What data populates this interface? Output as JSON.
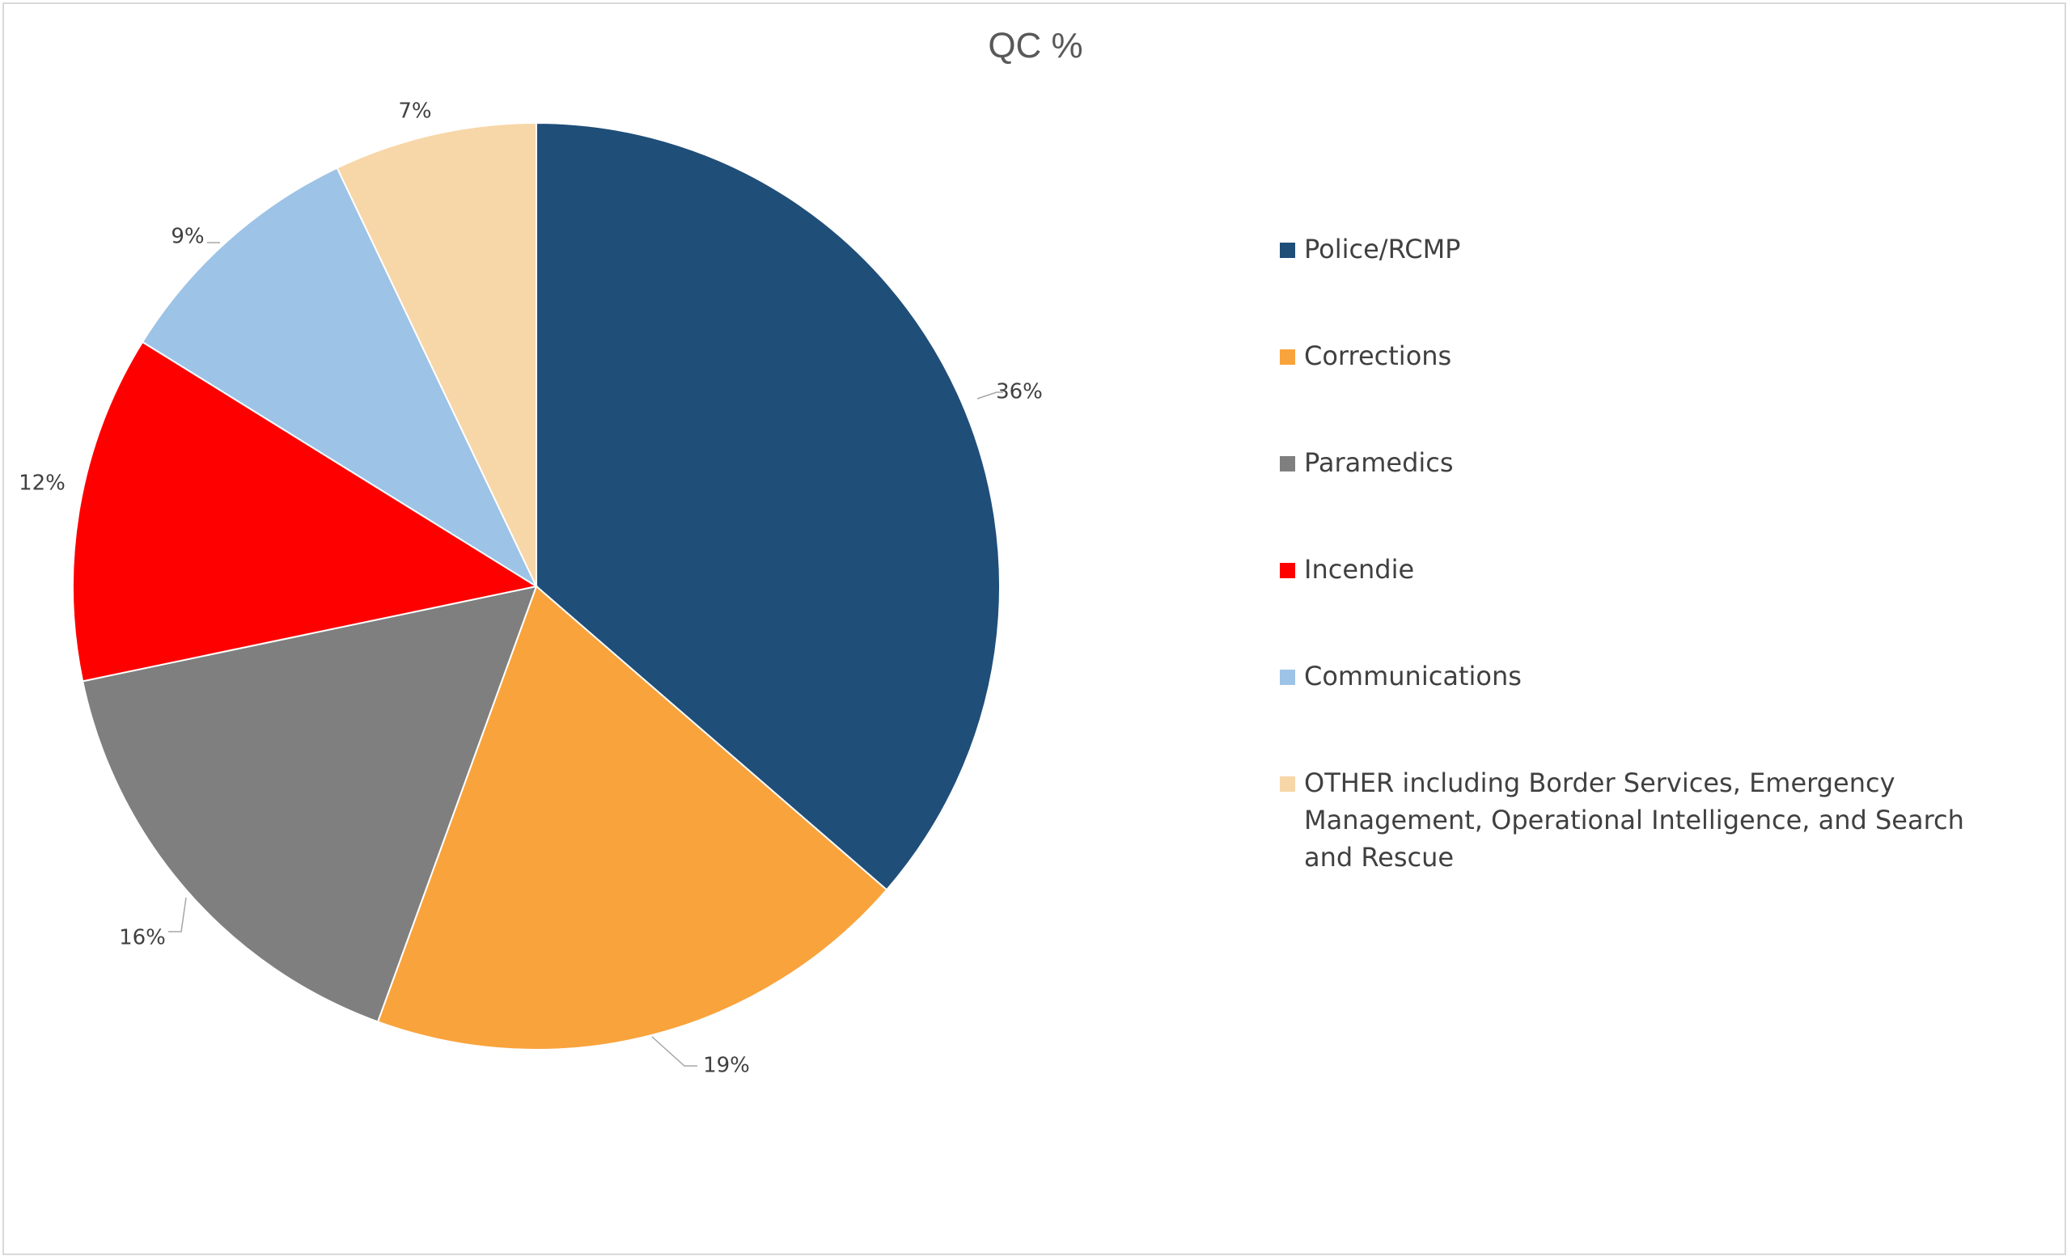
{
  "chart_data": {
    "type": "pie",
    "title": "QC %",
    "categories": [
      "Police/RCMP",
      "Corrections",
      "Paramedics",
      "Incendie",
      "Communications",
      "OTHER including Border Services, Emergency Management, Operational Intelligence, and Search and Rescue"
    ],
    "values": [
      36,
      19,
      16,
      12,
      9,
      7
    ],
    "data_labels": [
      "36%",
      "19%",
      "16%",
      "12%",
      "9%",
      "7%"
    ],
    "colors": [
      "#1F4E79",
      "#F9A33C",
      "#7F7F7F",
      "#FF0000",
      "#9DC3E6",
      "#F7D6A8"
    ],
    "legend_position": "right"
  }
}
